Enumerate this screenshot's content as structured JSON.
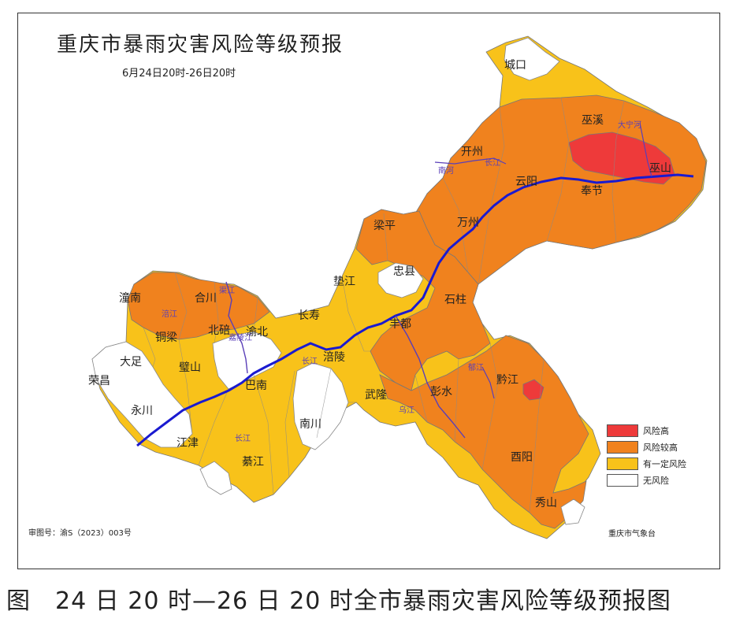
{
  "map": {
    "title": "重庆市暴雨灾害风险等级预报",
    "subtitle": "6月24日20时-26日20时",
    "approval_number": "审图号：渝S（2023）003号",
    "agency": "重庆市气象台",
    "caption": "图　24 日 20 时—26 日 20 时全市暴雨灾害风险等级预报图",
    "colors": {
      "high": "#ee3a3a",
      "higher": "#f0821e",
      "some": "#f8c21a",
      "none": "#ffffff",
      "river": "#1a1ad0",
      "border": "#888888"
    },
    "legend": [
      {
        "label": "风险高",
        "color": "#ee3a3a"
      },
      {
        "label": "风险较高",
        "color": "#f0821e"
      },
      {
        "label": "有一定风险",
        "color": "#f8c21a"
      },
      {
        "label": "无风险",
        "color": "#ffffff"
      }
    ],
    "districts": [
      "城口",
      "巫溪",
      "开州",
      "云阳",
      "巫山",
      "奉节",
      "梁平",
      "万州",
      "垫江",
      "忠县",
      "潼南",
      "合川",
      "长寿",
      "石柱",
      "铜梁",
      "北碚",
      "渝北",
      "丰都",
      "大足",
      "璧山",
      "涪陵",
      "荣昌",
      "巴南",
      "武隆",
      "彭水",
      "黔江",
      "永川",
      "南川",
      "江津",
      "綦江",
      "酉阳",
      "秀山"
    ],
    "rivers": [
      "大宁河",
      "长江",
      "南河",
      "渠江",
      "嘉陵江",
      "涪江",
      "乌江",
      "郁江"
    ]
  }
}
